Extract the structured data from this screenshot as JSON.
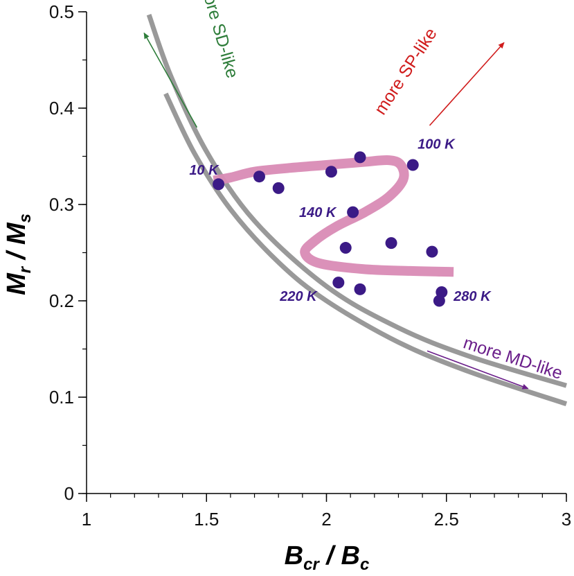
{
  "chart_data": {
    "type": "scatter",
    "xlabel": {
      "main": "B",
      "sub": "cr",
      "sep": " / ",
      "main2": "B",
      "sub2": "c"
    },
    "ylabel": {
      "main": "M",
      "sub": "r",
      "sep": " / ",
      "main2": "M",
      "sub2": "s"
    },
    "xlim": [
      1,
      3
    ],
    "ylim": [
      0,
      0.5
    ],
    "x_ticks": [
      {
        "value": 1,
        "label": "1"
      },
      {
        "value": 1.5,
        "label": "1.5"
      },
      {
        "value": 2,
        "label": "2"
      },
      {
        "value": 2.5,
        "label": "2.5"
      },
      {
        "value": 3,
        "label": "3"
      }
    ],
    "y_ticks": [
      {
        "value": 0,
        "label": "0"
      },
      {
        "value": 0.1,
        "label": "0.1"
      },
      {
        "value": 0.2,
        "label": "0.2"
      },
      {
        "value": 0.3,
        "label": "0.3"
      },
      {
        "value": 0.4,
        "label": "0.4"
      },
      {
        "value": 0.5,
        "label": "0.5"
      }
    ],
    "x_minor_step": 0.1,
    "y_minor_step": 0.05,
    "grid": false,
    "points_color": "#3b1a86",
    "points": [
      {
        "x": 1.55,
        "y": 0.321
      },
      {
        "x": 1.72,
        "y": 0.329
      },
      {
        "x": 1.8,
        "y": 0.317
      },
      {
        "x": 2.02,
        "y": 0.334
      },
      {
        "x": 2.14,
        "y": 0.349
      },
      {
        "x": 2.36,
        "y": 0.341
      },
      {
        "x": 2.11,
        "y": 0.292
      },
      {
        "x": 2.08,
        "y": 0.255
      },
      {
        "x": 2.27,
        "y": 0.26
      },
      {
        "x": 2.44,
        "y": 0.251
      },
      {
        "x": 2.05,
        "y": 0.219
      },
      {
        "x": 2.14,
        "y": 0.212
      },
      {
        "x": 2.48,
        "y": 0.209
      },
      {
        "x": 2.47,
        "y": 0.2
      }
    ],
    "temperature_labels": [
      {
        "text": "10 K",
        "x": 1.55,
        "y": 0.331,
        "anchor": "end"
      },
      {
        "text": "100 K",
        "x": 2.38,
        "y": 0.358,
        "anchor": "start"
      },
      {
        "text": "140 K",
        "x": 2.04,
        "y": 0.287,
        "anchor": "end"
      },
      {
        "text": "220 K",
        "x": 1.96,
        "y": 0.2,
        "anchor": "end"
      },
      {
        "text": "280 K",
        "x": 2.53,
        "y": 0.2,
        "anchor": "start"
      }
    ],
    "trend_curve": {
      "color": "#d98bb5",
      "points": [
        [
          1.53,
          0.325
        ],
        [
          1.6,
          0.328
        ],
        [
          1.7,
          0.334
        ],
        [
          1.85,
          0.338
        ],
        [
          2.0,
          0.341
        ],
        [
          2.15,
          0.344
        ],
        [
          2.26,
          0.346
        ],
        [
          2.31,
          0.341
        ],
        [
          2.32,
          0.326
        ],
        [
          2.26,
          0.308
        ],
        [
          2.16,
          0.292
        ],
        [
          2.04,
          0.277
        ],
        [
          1.95,
          0.262
        ],
        [
          1.91,
          0.25
        ],
        [
          1.97,
          0.239
        ],
        [
          2.15,
          0.233
        ],
        [
          2.35,
          0.231
        ],
        [
          2.53,
          0.23
        ]
      ]
    },
    "reference_curves": {
      "color": "#999999",
      "curves": [
        {
          "points": [
            [
              1.26,
              0.497
            ],
            [
              1.35,
              0.434
            ],
            [
              1.5,
              0.355
            ],
            [
              1.7,
              0.283
            ],
            [
              2.0,
              0.215
            ],
            [
              2.3,
              0.172
            ],
            [
              2.6,
              0.142
            ],
            [
              3.0,
              0.112
            ]
          ]
        },
        {
          "points": [
            [
              1.33,
              0.415
            ],
            [
              1.45,
              0.353
            ],
            [
              1.6,
              0.295
            ],
            [
              1.8,
              0.24
            ],
            [
              2.0,
              0.2
            ],
            [
              2.3,
              0.157
            ],
            [
              2.6,
              0.126
            ],
            [
              3.0,
              0.093
            ]
          ]
        }
      ]
    },
    "annotations": [
      {
        "text": "more SD-like",
        "color": "#2e7d3a",
        "x": 1.53,
        "y": 0.48,
        "angle": 74
      },
      {
        "text": "more SP-like",
        "color": "#d01c1c",
        "x": 2.35,
        "y": 0.435,
        "angle": -57
      },
      {
        "text": "more MD-like",
        "color": "#6a1e8a",
        "x": 2.77,
        "y": 0.135,
        "angle": 18
      }
    ],
    "annotation_arrows": [
      {
        "color": "#2e7d3a",
        "from": [
          1.46,
          0.38
        ],
        "to": [
          1.24,
          0.478
        ]
      },
      {
        "color": "#d01c1c",
        "from": [
          2.43,
          0.382
        ],
        "to": [
          2.74,
          0.468
        ]
      },
      {
        "color": "#6a1e8a",
        "from": [
          2.42,
          0.148
        ],
        "to": [
          2.84,
          0.109
        ]
      }
    ]
  }
}
